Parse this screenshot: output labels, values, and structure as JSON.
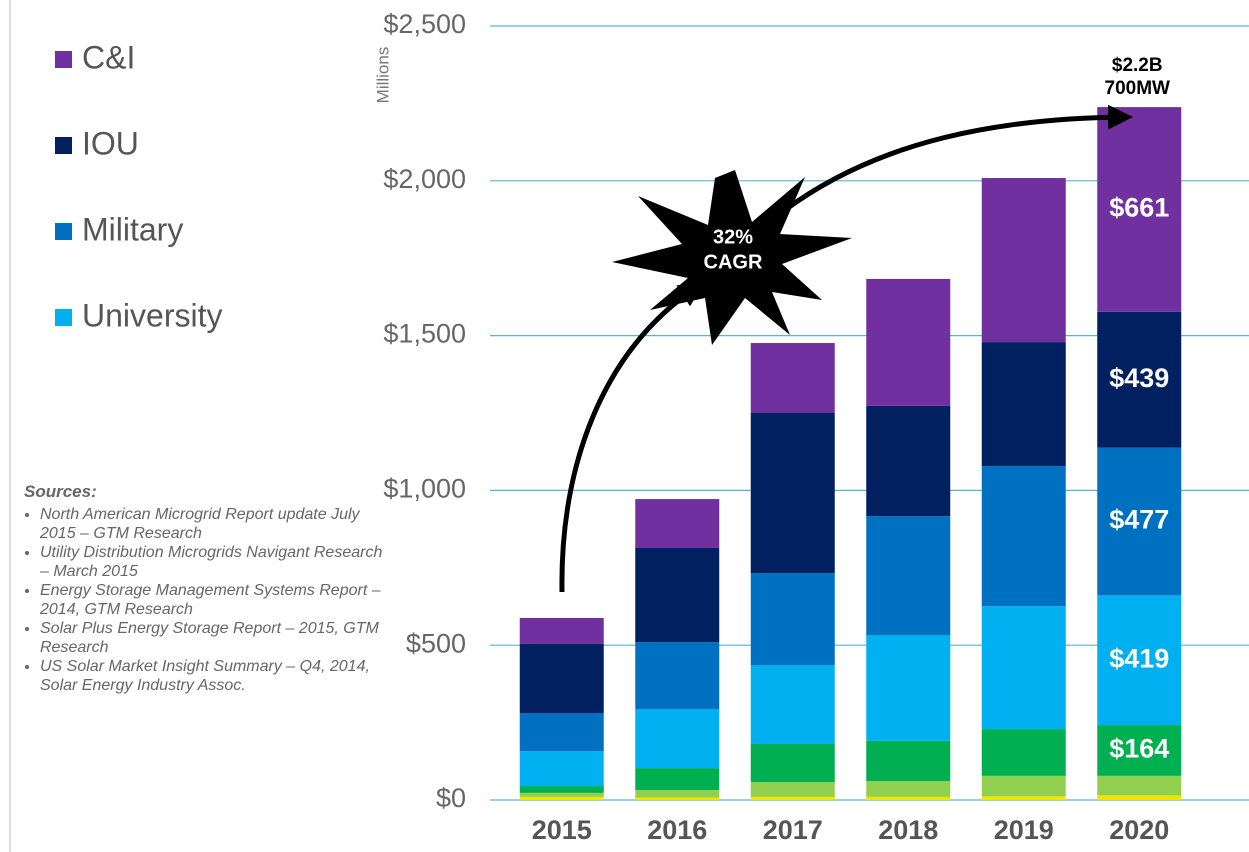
{
  "chart_data": {
    "type": "stacked_bar",
    "y_axis_label": "Millions",
    "categories": [
      "2015",
      "2016",
      "2017",
      "2018",
      "2019",
      "2020"
    ],
    "series": [
      {
        "color": "#f0e500",
        "values": [
          10,
          8,
          10,
          10,
          12,
          15
        ]
      },
      {
        "color": "#92d050",
        "values": [
          13,
          24,
          48,
          51,
          66,
          63
        ]
      },
      {
        "color": "#00b050",
        "values": [
          22,
          71,
          123,
          130,
          151,
          164
        ],
        "value_labels": [
          null,
          null,
          null,
          null,
          null,
          "$164"
        ]
      },
      {
        "name": "University",
        "color": "#00b0f0",
        "values": [
          113,
          191,
          255,
          342,
          397,
          419
        ],
        "value_labels": [
          null,
          null,
          null,
          null,
          null,
          "$419"
        ]
      },
      {
        "name": "Military",
        "color": "#0070c0",
        "values": [
          123,
          216,
          297,
          384,
          453,
          477
        ],
        "value_labels": [
          null,
          null,
          null,
          null,
          null,
          "$477"
        ]
      },
      {
        "name": "IOU",
        "color": "#002060",
        "values": [
          223,
          304,
          517,
          356,
          400,
          439
        ],
        "value_labels": [
          null,
          null,
          null,
          null,
          null,
          "$439"
        ]
      },
      {
        "name": "C&I",
        "color": "#7030a0",
        "values": [
          84,
          158,
          226,
          410,
          530,
          661
        ],
        "value_labels": [
          null,
          null,
          null,
          null,
          null,
          "$661"
        ]
      }
    ],
    "ylim": [
      0,
      2500
    ],
    "yticks": [
      {
        "value": 0,
        "label": "$0"
      },
      {
        "value": 500,
        "label": "$500"
      },
      {
        "value": 1000,
        "label": "$1,000"
      },
      {
        "value": 1500,
        "label": "$1,500"
      },
      {
        "value": 2000,
        "label": "$2,000"
      },
      {
        "value": 2500,
        "label": "$2,500"
      }
    ],
    "grid": true,
    "total_annotation": [
      "$2.2B",
      "700MW"
    ],
    "growth_annotation": [
      "32%",
      "CAGR"
    ],
    "sources_title": "Sources:",
    "sources": [
      "North American Microgrid Report update July 2015 – GTM Research",
      "Utility Distribution Microgrids Navigant Research – March 2015",
      "Energy Storage Management Systems Report – 2014, GTM Research",
      "Solar Plus Energy Storage Report – 2015, GTM Research",
      "US Solar Market Insight Summary – Q4, 2014, Solar Energy Industry Assoc."
    ]
  }
}
